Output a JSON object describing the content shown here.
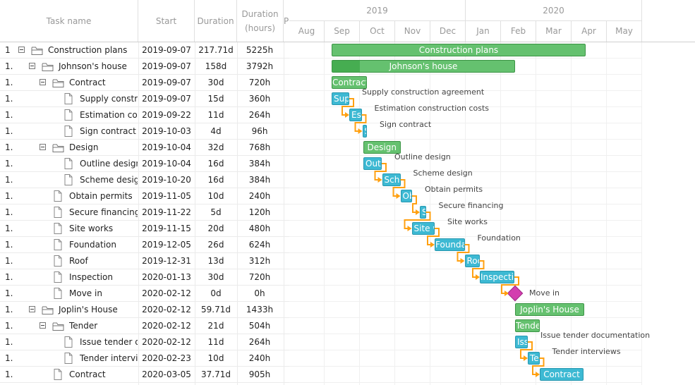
{
  "grid": {
    "headers": {
      "task_name": "Task name",
      "start": "Start",
      "duration": "Duration",
      "duration_hours": "Duration (hours)",
      "extra": "P"
    },
    "rows": [
      {
        "num": "1",
        "name": "Construction plans",
        "start": "2019-09-07",
        "duration": "217.71d",
        "hours": "5225h",
        "level": 0,
        "type": "project"
      },
      {
        "num": "1.",
        "name": "Johnson's house",
        "start": "2019-09-07",
        "duration": "158d",
        "hours": "3792h",
        "level": 1,
        "type": "project"
      },
      {
        "num": "1.",
        "name": "Contract",
        "start": "2019-09-07",
        "duration": "30d",
        "hours": "720h",
        "level": 2,
        "type": "project"
      },
      {
        "num": "1.",
        "name": "Supply construction agreement",
        "start": "2019-09-07",
        "duration": "15d",
        "hours": "360h",
        "level": 3,
        "type": "task"
      },
      {
        "num": "1.",
        "name": "Estimation construction costs",
        "start": "2019-09-22",
        "duration": "11d",
        "hours": "264h",
        "level": 3,
        "type": "task"
      },
      {
        "num": "1.",
        "name": "Sign contract",
        "start": "2019-10-03",
        "duration": "4d",
        "hours": "96h",
        "level": 3,
        "type": "task"
      },
      {
        "num": "1.",
        "name": "Design",
        "start": "2019-10-04",
        "duration": "32d",
        "hours": "768h",
        "level": 2,
        "type": "project"
      },
      {
        "num": "1.",
        "name": "Outline design",
        "start": "2019-10-04",
        "duration": "16d",
        "hours": "384h",
        "level": 3,
        "type": "task"
      },
      {
        "num": "1.",
        "name": "Scheme design",
        "start": "2019-10-20",
        "duration": "16d",
        "hours": "384h",
        "level": 3,
        "type": "task"
      },
      {
        "num": "1.",
        "name": "Obtain permits",
        "start": "2019-11-05",
        "duration": "10d",
        "hours": "240h",
        "level": 2,
        "type": "task"
      },
      {
        "num": "1.",
        "name": "Secure financing",
        "start": "2019-11-22",
        "duration": "5d",
        "hours": "120h",
        "level": 2,
        "type": "task"
      },
      {
        "num": "1.",
        "name": "Site works",
        "start": "2019-11-15",
        "duration": "20d",
        "hours": "480h",
        "level": 2,
        "type": "task"
      },
      {
        "num": "1.",
        "name": "Foundation",
        "start": "2019-12-05",
        "duration": "26d",
        "hours": "624h",
        "level": 2,
        "type": "task"
      },
      {
        "num": "1.",
        "name": "Roof",
        "start": "2019-12-31",
        "duration": "13d",
        "hours": "312h",
        "level": 2,
        "type": "task"
      },
      {
        "num": "1.",
        "name": "Inspection",
        "start": "2020-01-13",
        "duration": "30d",
        "hours": "720h",
        "level": 2,
        "type": "task"
      },
      {
        "num": "1.",
        "name": "Move in",
        "start": "2020-02-12",
        "duration": "0d",
        "hours": "0h",
        "level": 2,
        "type": "milestone"
      },
      {
        "num": "1.",
        "name": "Joplin's House",
        "start": "2020-02-12",
        "duration": "59.71d",
        "hours": "1433h",
        "level": 1,
        "type": "project"
      },
      {
        "num": "1.",
        "name": "Tender",
        "start": "2020-02-12",
        "duration": "21d",
        "hours": "504h",
        "level": 2,
        "type": "project"
      },
      {
        "num": "1.",
        "name": "Issue tender documentation",
        "start": "2020-02-12",
        "duration": "11d",
        "hours": "264h",
        "level": 3,
        "type": "task"
      },
      {
        "num": "1.",
        "name": "Tender interviews",
        "start": "2020-02-23",
        "duration": "10d",
        "hours": "240h",
        "level": 3,
        "type": "task"
      },
      {
        "num": "1.",
        "name": "Contract",
        "start": "2020-03-05",
        "duration": "37.71d",
        "hours": "905h",
        "level": 2,
        "type": "task"
      }
    ]
  },
  "timeline": {
    "years": [
      "2019",
      "2020"
    ],
    "months": [
      "Aug",
      "Sep",
      "Oct",
      "Nov",
      "Dec",
      "Jan",
      "Feb",
      "Mar",
      "Apr",
      "May"
    ],
    "bars": [
      {
        "label": "Construction plans",
        "type": "project",
        "start_month": 1.2,
        "duration_months": 7.2,
        "progress": 0,
        "right_label": ""
      },
      {
        "label": "Johnson's house",
        "type": "project",
        "start_month": 1.2,
        "duration_months": 5.2,
        "progress": 0.15,
        "right_label": ""
      },
      {
        "label": "Contract",
        "type": "project",
        "start_month": 1.2,
        "duration_months": 1.0,
        "progress": 0,
        "right_label": ""
      },
      {
        "label": "Sup",
        "type": "task",
        "start_month": 1.2,
        "duration_months": 0.5,
        "progress": 0,
        "right_label": "Supply construction agreement"
      },
      {
        "label": "Es",
        "type": "task",
        "start_month": 1.7,
        "duration_months": 0.35,
        "progress": 0,
        "right_label": "Estimation construction costs"
      },
      {
        "label": "S",
        "type": "task",
        "start_month": 2.07,
        "duration_months": 0.13,
        "progress": 0,
        "right_label": "Sign contract"
      },
      {
        "label": "Design",
        "type": "project",
        "start_month": 2.1,
        "duration_months": 1.05,
        "progress": 0,
        "right_label": ""
      },
      {
        "label": "Outli",
        "type": "task",
        "start_month": 2.1,
        "duration_months": 0.52,
        "progress": 0,
        "right_label": "Outline design"
      },
      {
        "label": "Sche",
        "type": "task",
        "start_month": 2.63,
        "duration_months": 0.52,
        "progress": 0,
        "right_label": "Scheme design"
      },
      {
        "label": "Ob",
        "type": "task",
        "start_month": 3.15,
        "duration_months": 0.33,
        "progress": 0,
        "right_label": "Obtain permits"
      },
      {
        "label": "S",
        "type": "task",
        "start_month": 3.7,
        "duration_months": 0.17,
        "progress": 0,
        "right_label": "Secure financing"
      },
      {
        "label": "Site w",
        "type": "task",
        "start_month": 3.47,
        "duration_months": 0.65,
        "progress": 0,
        "right_label": "Site works"
      },
      {
        "label": "Founda",
        "type": "task",
        "start_month": 4.12,
        "duration_months": 0.85,
        "progress": 0,
        "right_label": "Foundation"
      },
      {
        "label": "Roo",
        "type": "task",
        "start_month": 4.97,
        "duration_months": 0.42,
        "progress": 0,
        "right_label": ""
      },
      {
        "label": "Inspectio",
        "type": "task",
        "start_month": 5.4,
        "duration_months": 0.98,
        "progress": 0,
        "right_label": ""
      },
      {
        "label": "",
        "type": "milestone",
        "start_month": 6.4,
        "duration_months": 0,
        "progress": 0,
        "right_label": "Move in"
      },
      {
        "label": "Joplin's House",
        "type": "project",
        "start_month": 6.4,
        "duration_months": 1.96,
        "progress": 0,
        "right_label": ""
      },
      {
        "label": "Tende",
        "type": "project",
        "start_month": 6.4,
        "duration_months": 0.7,
        "progress": 0,
        "right_label": ""
      },
      {
        "label": "Iss",
        "type": "task",
        "start_month": 6.4,
        "duration_months": 0.36,
        "progress": 0,
        "right_label": "Issue tender documentation"
      },
      {
        "label": "Te",
        "type": "task",
        "start_month": 6.76,
        "duration_months": 0.33,
        "progress": 0,
        "right_label": "Tender interviews"
      },
      {
        "label": "Contract",
        "type": "task",
        "start_month": 7.1,
        "duration_months": 1.24,
        "progress": 0,
        "right_label": ""
      }
    ],
    "links": [
      [
        4,
        5
      ],
      [
        5,
        6
      ],
      [
        8,
        9
      ],
      [
        9,
        10
      ],
      [
        10,
        11
      ],
      [
        11,
        12
      ],
      [
        12,
        13
      ],
      [
        13,
        14
      ],
      [
        14,
        15
      ],
      [
        15,
        16
      ],
      [
        19,
        20
      ],
      [
        20,
        21
      ]
    ]
  },
  "colors": {
    "project": "#65c16f",
    "task": "#3db9d3",
    "milestone": "#d33daf",
    "link": "#ffa011"
  }
}
